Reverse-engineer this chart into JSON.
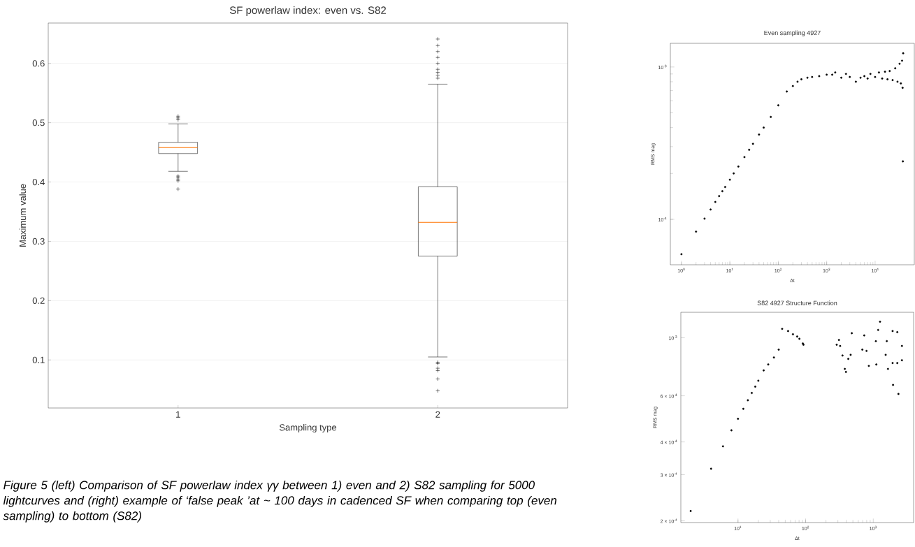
{
  "chart_data": [
    {
      "type": "box",
      "title": "SF powerlaw index: even vs. S82",
      "xlabel": "Sampling type",
      "ylabel": "Maximum value",
      "categories": [
        "1",
        "2"
      ],
      "color": "#000000",
      "boxes": [
        {
          "low": 0.418,
          "q1": 0.448,
          "median": 0.458,
          "q3": 0.467,
          "high": 0.498,
          "outliers": [
            0.505,
            0.508,
            0.511,
            0.41,
            0.408,
            0.405,
            0.402,
            0.388
          ]
        },
        {
          "low": 0.105,
          "q1": 0.275,
          "median": 0.332,
          "q3": 0.392,
          "high": 0.565,
          "outliers": [
            0.575,
            0.58,
            0.585,
            0.59,
            0.6,
            0.61,
            0.62,
            0.63,
            0.641,
            0.096,
            0.094,
            0.086,
            0.082,
            0.068,
            0.048
          ]
        }
      ],
      "ylim": [
        0.019,
        0.668
      ],
      "yticks": [
        0.1,
        0.2,
        0.3,
        0.4,
        0.5,
        0.6
      ],
      "grid": "y",
      "annotations": [
        "Figure 5 (left) Comparison of SF powerlaw index γγ between 1) even and 2) S82 sampling for 5000 lightcurves and (right) example of ‘false peak ’at ~ 100 days in cadenced SF when comparing top (even sampling) to bottom (S82)"
      ]
    },
    {
      "type": "scatter",
      "title": "Even sampling 4927",
      "xlabel": "Δt",
      "ylabel": "RMS mag",
      "log": "xy",
      "color": "#000000",
      "x": [
        1,
        2,
        3,
        4,
        5,
        6,
        7,
        8,
        10,
        12,
        15,
        20,
        25,
        30,
        40,
        50,
        70,
        100,
        150,
        200,
        250,
        300,
        400,
        500,
        700,
        1000,
        1300,
        1500,
        2000,
        2500,
        3000,
        4000,
        5000,
        6000,
        7000,
        8000,
        10000,
        12000,
        14000,
        16000,
        18000,
        20000,
        23000,
        26000,
        29000,
        32000,
        34000,
        36000,
        37000,
        37500,
        38000
      ],
      "values": [
        5.9e-05,
        8.3e-05,
        0.000101,
        0.000116,
        0.00013,
        0.000142,
        0.000153,
        0.000163,
        0.000182,
        0.0002,
        0.000222,
        0.000256,
        0.000286,
        0.000313,
        0.00036,
        0.0004,
        0.00047,
        0.00056,
        0.00069,
        0.00075,
        0.0008,
        0.00083,
        0.00085,
        0.00086,
        0.00087,
        0.00089,
        0.00089,
        0.00092,
        0.00085,
        0.0009,
        0.00086,
        0.0008,
        0.00085,
        0.00087,
        0.00084,
        0.0009,
        0.00086,
        0.00092,
        0.00084,
        0.00093,
        0.00083,
        0.00094,
        0.00082,
        0.00098,
        0.0008,
        0.00105,
        0.00078,
        0.0011,
        0.00073,
        0.00024,
        0.00123
      ],
      "xlim": [
        0.59,
        64500
      ],
      "ylim": [
        5.03e-05,
        0.00143
      ],
      "xticks": [
        {
          "value": 1,
          "label": "10$^{0}$"
        },
        {
          "value": 10,
          "label": "10$^{1}$"
        },
        {
          "value": 100,
          "label": "10$^{2}$"
        },
        {
          "value": 1000,
          "label": "10$^{3}$"
        },
        {
          "value": 10000,
          "label": "10$^{4}$"
        }
      ],
      "yticks": [
        {
          "value": 0.0001,
          "label": "10$^{-4}$"
        },
        {
          "value": 0.001,
          "label": "10$^{-3}$"
        }
      ]
    },
    {
      "type": "scatter",
      "title": "S82 4927 Structure Function",
      "xlabel": "Δt",
      "ylabel": "RMS mag",
      "log": "xy",
      "color": "#000000",
      "x": [
        2,
        4,
        6,
        8,
        10,
        12,
        14,
        16,
        18,
        20,
        24,
        28,
        34,
        40,
        45,
        55,
        65,
        75,
        81,
        91,
        93,
        288,
        311,
        324,
        351,
        380,
        395,
        427,
        463,
        482,
        689,
        735,
        795,
        860,
        1092,
        1109,
        1181,
        1259,
        1525,
        1585,
        1648,
        1932,
        1932,
        1963,
        2265,
        2265,
        2355,
        2653,
        2653
      ],
      "values": [
        0.000218,
        0.000316,
        0.000385,
        0.000443,
        0.00049,
        0.000535,
        0.000577,
        0.000615,
        0.00065,
        0.000685,
        0.00075,
        0.00079,
        0.00084,
        0.0009,
        0.00108,
        0.00106,
        0.00103,
        0.00101,
        0.00099,
        0.00095,
        0.00094,
        0.00094,
        0.00098,
        0.00093,
        0.000855,
        0.00076,
        0.00074,
        0.00083,
        0.00086,
        0.00104,
        0.0009,
        0.00102,
        0.00089,
        0.00078,
        0.00097,
        0.00079,
        0.00107,
        0.00115,
        0.00086,
        0.00097,
        0.00076,
        0.00106,
        0.0008,
        0.00066,
        0.00105,
        0.0008,
        0.00061,
        0.00093,
        0.00082
      ],
      "xlim": [
        1.43,
        3950
      ],
      "ylim": [
        0.000197,
        0.00125
      ],
      "xticks": [
        {
          "value": 10,
          "label": "10$^{1}$"
        },
        {
          "value": 100,
          "label": "10$^{2}$"
        },
        {
          "value": 1000,
          "label": "10$^{3}$"
        }
      ],
      "yticks": [
        {
          "value": 0.0002,
          "label": "2 × 10$^{-4}$"
        },
        {
          "value": 0.0003,
          "label": "3 × 10$^{-4}$"
        },
        {
          "value": 0.0004,
          "label": "4 × 10$^{-4}$"
        },
        {
          "value": 0.0006,
          "label": "6 × 10$^{-4}$"
        },
        {
          "value": 0.001,
          "label": "10$^{-3}$"
        }
      ]
    }
  ]
}
